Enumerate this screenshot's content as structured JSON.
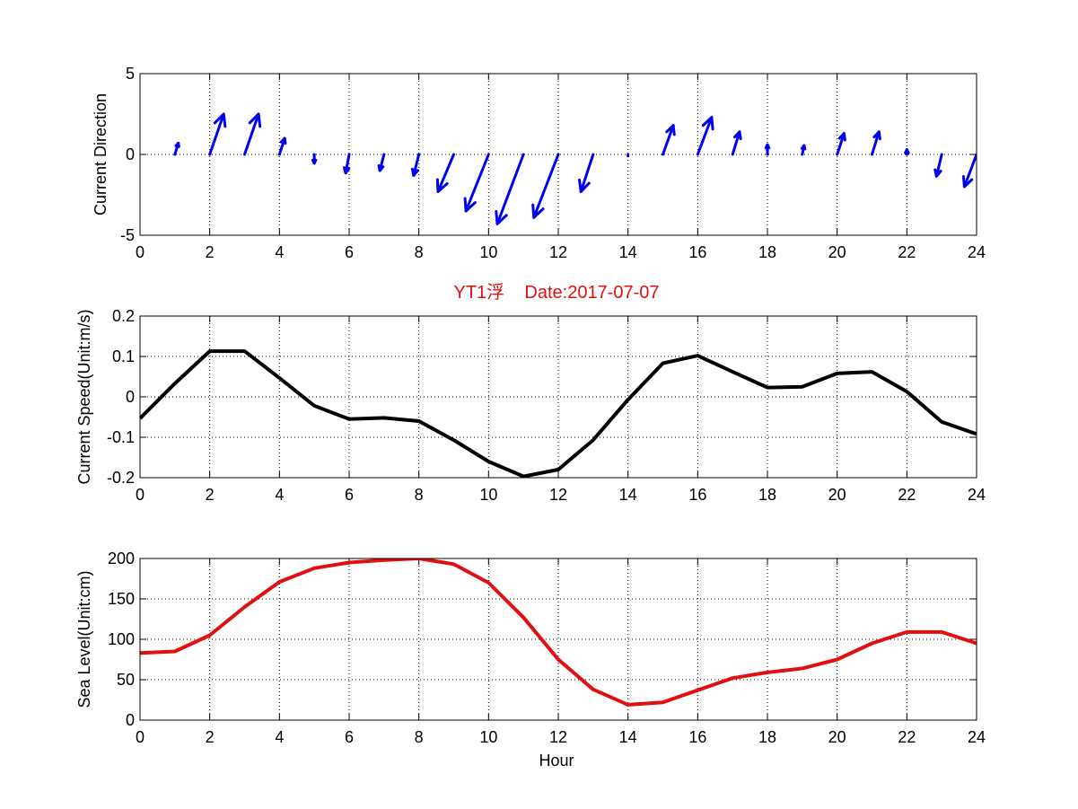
{
  "chart_data": [
    {
      "type": "quiver",
      "ylabel": "Current Direction",
      "xlim": [
        0,
        24
      ],
      "ylim": [
        -5,
        5
      ],
      "xticks": [
        0,
        2,
        4,
        6,
        8,
        10,
        12,
        14,
        16,
        18,
        20,
        22,
        24
      ],
      "yticks": [
        -5,
        0,
        5
      ],
      "grid": true,
      "color": "#0000ee",
      "arrows": [
        {
          "x": 1,
          "u": 0.1,
          "v": 0.7
        },
        {
          "x": 2,
          "u": 0.4,
          "v": 2.5
        },
        {
          "x": 3,
          "u": 0.4,
          "v": 2.5
        },
        {
          "x": 4,
          "u": 0.15,
          "v": 1.0
        },
        {
          "x": 5,
          "u": 0.0,
          "v": -0.55
        },
        {
          "x": 6,
          "u": -0.1,
          "v": -1.15
        },
        {
          "x": 7,
          "u": -0.12,
          "v": -1.0
        },
        {
          "x": 8,
          "u": -0.15,
          "v": -1.3
        },
        {
          "x": 9,
          "u": -0.45,
          "v": -2.3
        },
        {
          "x": 10,
          "u": -0.65,
          "v": -3.5
        },
        {
          "x": 11,
          "u": -0.75,
          "v": -4.3
        },
        {
          "x": 12,
          "u": -0.7,
          "v": -3.9
        },
        {
          "x": 13,
          "u": -0.35,
          "v": -2.3
        },
        {
          "x": 14,
          "u": 0.0,
          "v": -0.1
        },
        {
          "x": 15,
          "u": 0.3,
          "v": 1.8
        },
        {
          "x": 16,
          "u": 0.4,
          "v": 2.3
        },
        {
          "x": 17,
          "u": 0.2,
          "v": 1.4
        },
        {
          "x": 18,
          "u": 0.0,
          "v": 0.6
        },
        {
          "x": 19,
          "u": 0.05,
          "v": 0.55
        },
        {
          "x": 20,
          "u": 0.2,
          "v": 1.3
        },
        {
          "x": 21,
          "u": 0.2,
          "v": 1.4
        },
        {
          "x": 22,
          "u": 0.0,
          "v": 0.3
        },
        {
          "x": 23,
          "u": -0.15,
          "v": -1.35
        },
        {
          "x": 24,
          "u": -0.35,
          "v": -2.0
        }
      ]
    },
    {
      "type": "line",
      "title": "YT1浮    Date:2017-07-07",
      "title_color": "#e01010",
      "ylabel": "Current Speed(Unit:m/s)",
      "xlim": [
        0,
        24
      ],
      "ylim": [
        -0.2,
        0.2
      ],
      "xticks": [
        0,
        2,
        4,
        6,
        8,
        10,
        12,
        14,
        16,
        18,
        20,
        22,
        24
      ],
      "yticks": [
        -0.2,
        -0.1,
        0,
        0.1,
        0.2
      ],
      "ytick_labels": [
        "-0.2",
        "-0.1",
        "0",
        "0.1",
        "0.2"
      ],
      "grid": true,
      "color": "#000000",
      "x": [
        0,
        1,
        2,
        3,
        4,
        5,
        6,
        7,
        8,
        9,
        10,
        11,
        12,
        13,
        14,
        15,
        16,
        17,
        18,
        19,
        20,
        21,
        22,
        23,
        24
      ],
      "y": [
        -0.053,
        0.033,
        0.113,
        0.113,
        0.047,
        -0.022,
        -0.055,
        -0.052,
        -0.06,
        -0.107,
        -0.16,
        -0.197,
        -0.18,
        -0.107,
        -0.007,
        0.083,
        0.102,
        0.062,
        0.023,
        0.025,
        0.058,
        0.062,
        0.013,
        -0.062,
        -0.092
      ]
    },
    {
      "type": "line",
      "ylabel": "Sea Level(Unit:cm)",
      "xlabel": "Hour",
      "xlim": [
        0,
        24
      ],
      "ylim": [
        0,
        200
      ],
      "xticks": [
        0,
        2,
        4,
        6,
        8,
        10,
        12,
        14,
        16,
        18,
        20,
        22,
        24
      ],
      "yticks": [
        0,
        50,
        100,
        150,
        200
      ],
      "grid": true,
      "color": "#e01010",
      "x": [
        0,
        1,
        2,
        3,
        4,
        5,
        6,
        7,
        8,
        9,
        10,
        11,
        12,
        13,
        14,
        15,
        16,
        17,
        18,
        19,
        20,
        21,
        22,
        23,
        24
      ],
      "y": [
        83,
        85,
        105,
        140,
        171,
        188,
        195,
        198,
        200,
        193,
        170,
        127,
        75,
        38,
        19,
        22,
        37,
        52,
        59,
        64,
        75,
        95,
        109,
        109,
        95
      ]
    }
  ]
}
